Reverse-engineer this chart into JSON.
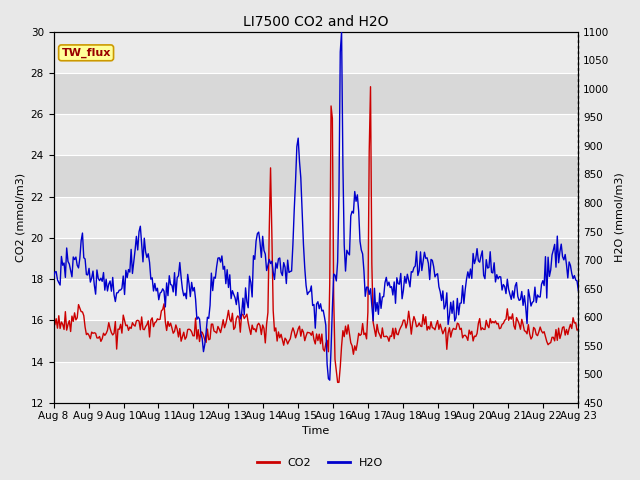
{
  "title": "LI7500 CO2 and H2O",
  "xlabel": "Time",
  "ylabel_left": "CO2 (mmol/m3)",
  "ylabel_right": "H2O (mmol/m3)",
  "ylim_left": [
    12,
    30
  ],
  "ylim_right": [
    450,
    1100
  ],
  "yticks_left": [
    12,
    14,
    16,
    18,
    20,
    22,
    24,
    26,
    28,
    30
  ],
  "yticks_right": [
    450,
    500,
    550,
    600,
    650,
    700,
    750,
    800,
    850,
    900,
    950,
    1000,
    1050,
    1100
  ],
  "x_tick_labels": [
    "Aug 8",
    "Aug 9",
    "Aug 10",
    "Aug 11",
    "Aug 12",
    "Aug 13",
    "Aug 14",
    "Aug 15",
    "Aug 16",
    "Aug 17",
    "Aug 18",
    "Aug 19",
    "Aug 20",
    "Aug 21",
    "Aug 22",
    "Aug 23"
  ],
  "co2_color": "#cc0000",
  "h2o_color": "#0000cc",
  "co2_linewidth": 1.0,
  "h2o_linewidth": 1.0,
  "fig_bg_color": "#e8e8e8",
  "band_light": "#ebebeb",
  "band_dark": "#d8d8d8",
  "legend_label_co2": "CO2",
  "legend_label_h2o": "H2O",
  "annotation_text": "TW_flux",
  "annotation_bg": "#ffff99",
  "annotation_border": "#cc9900",
  "title_fontsize": 10,
  "axis_fontsize": 8,
  "tick_fontsize": 7.5,
  "legend_fontsize": 8
}
